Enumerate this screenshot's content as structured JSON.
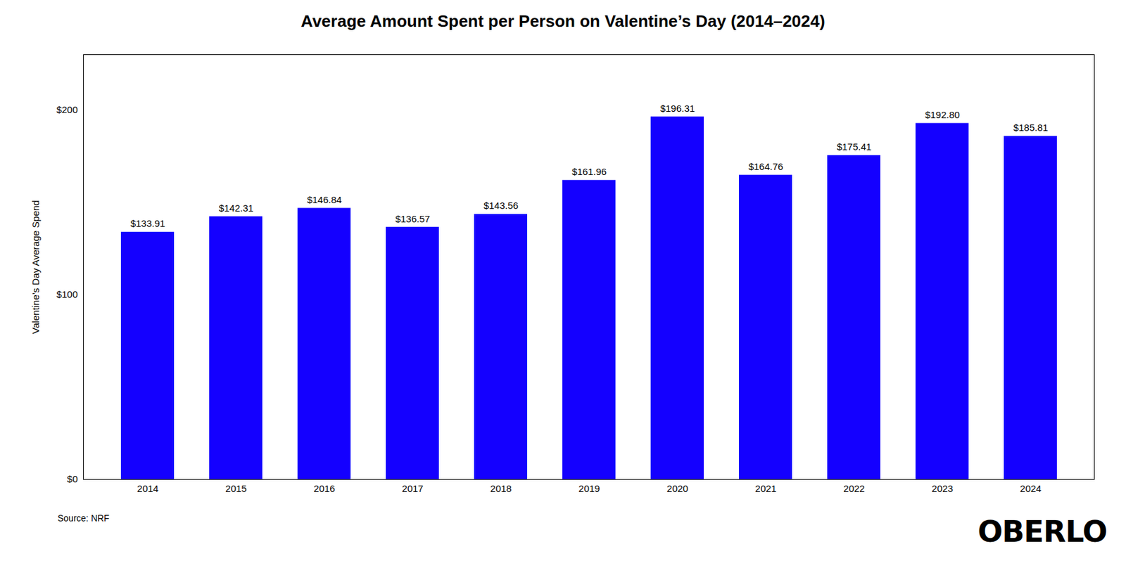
{
  "chart_data": {
    "type": "bar",
    "title": "Average Amount Spent per Person on Valentine’s Day (2014–2024)",
    "categories": [
      "2014",
      "2015",
      "2016",
      "2017",
      "2018",
      "2019",
      "2020",
      "2021",
      "2022",
      "2023",
      "2024"
    ],
    "values": [
      133.91,
      142.31,
      146.84,
      136.57,
      143.56,
      161.96,
      196.31,
      164.76,
      175.41,
      192.8,
      185.81
    ],
    "value_labels": [
      "$133.91",
      "$142.31",
      "$146.84",
      "$136.57",
      "$143.56",
      "$161.96",
      "$196.31",
      "$164.76",
      "$175.41",
      "$192.80",
      "$185.81"
    ],
    "data_labels": true,
    "color": "#1400FF",
    "ylabel": "Valentine’s Day Average Spend",
    "ylim": [
      0,
      230
    ],
    "yticks": [
      {
        "value": 0,
        "label": "$0"
      },
      {
        "value": 100,
        "label": "$100"
      },
      {
        "value": 200,
        "label": "$200"
      }
    ],
    "grid": false,
    "annotations": [
      "Source: NRF",
      "OBERLO"
    ]
  }
}
